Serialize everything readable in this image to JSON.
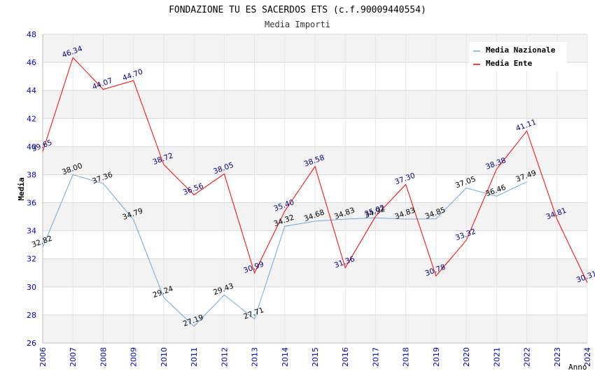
{
  "chart_data": {
    "type": "line",
    "title": "FONDAZIONE TU ES SACERDOS ETS (c.f.90009440554)",
    "subtitle": "Media Importi",
    "xlabel": "Anno",
    "ylabel": "Media",
    "ylim": [
      26,
      48
    ],
    "yticks": [
      "26",
      "28",
      "30",
      "32",
      "34",
      "36",
      "38",
      "40",
      "42",
      "44",
      "46",
      "48"
    ],
    "categories": [
      "2006",
      "2007",
      "2008",
      "2009",
      "2010",
      "2011",
      "2012",
      "2013",
      "2014",
      "2015",
      "2016",
      "2017",
      "2018",
      "2019",
      "2020",
      "2021",
      "2022",
      "2023",
      "2024"
    ],
    "legend_position": "top-right",
    "grid": true,
    "series": [
      {
        "name": "Media Nazionale",
        "color": "#6fa8dc",
        "label_color": "#000000",
        "values": [
          32.82,
          38.0,
          37.36,
          34.79,
          29.24,
          27.19,
          29.43,
          27.71,
          34.32,
          34.68,
          34.83,
          34.92,
          34.83,
          34.85,
          37.05,
          36.46,
          37.49,
          null,
          null
        ],
        "labels": [
          "32.82",
          "38.00",
          "37.36",
          "34.79",
          "29.24",
          "27.19",
          "29.43",
          "27.71",
          "34.32",
          "34.68",
          "34.83",
          "34.92",
          "34.83",
          "34.85",
          "37.05",
          "36.46",
          "37.49",
          "",
          ""
        ]
      },
      {
        "name": "Media Ente",
        "color": "#ff0000",
        "label_color": "#000080",
        "values": [
          39.65,
          46.34,
          44.07,
          44.7,
          38.72,
          36.56,
          38.05,
          30.99,
          35.4,
          38.58,
          31.36,
          35.02,
          37.3,
          30.78,
          33.32,
          38.38,
          41.11,
          34.81,
          30.31
        ],
        "labels": [
          "39.65",
          "46.34",
          "44.07",
          "44.70",
          "38.72",
          "36.56",
          "38.05",
          "30.99",
          "35.40",
          "38.58",
          "31.36",
          "35.02",
          "37.30",
          "30.78",
          "33.32",
          "38.38",
          "41.11",
          "34.81",
          "30.31"
        ]
      }
    ]
  }
}
